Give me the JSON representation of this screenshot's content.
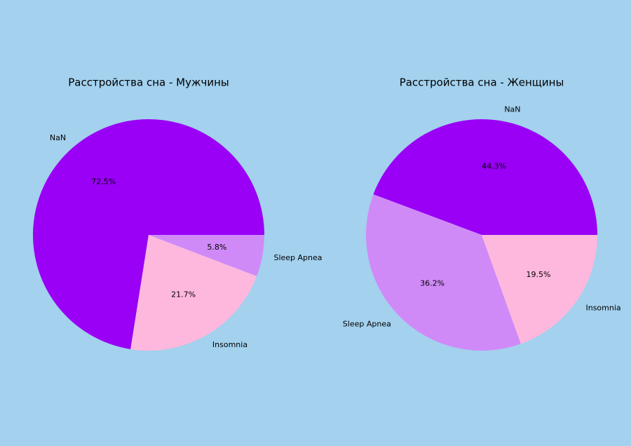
{
  "chart_data": [
    {
      "type": "pie",
      "title": "Расстройства сна - Мужчины",
      "categories": [
        "NaN",
        "Insomnia",
        "Sleep Apnea"
      ],
      "values": [
        72.5,
        21.7,
        5.8
      ],
      "value_labels": [
        "72.5%",
        "21.7%",
        "5.8%"
      ],
      "colors": [
        "#9900f5",
        "#ffb8dd",
        "#d08af8"
      ]
    },
    {
      "type": "pie",
      "title": "Расстройства сна - Женщины",
      "categories": [
        "NaN",
        "Sleep Apnea",
        "Insomnia"
      ],
      "values": [
        44.3,
        36.2,
        19.5
      ],
      "value_labels": [
        "44.3%",
        "36.2%",
        "19.5%"
      ],
      "colors": [
        "#9900f5",
        "#d08af8",
        "#ffb8dd"
      ]
    }
  ]
}
